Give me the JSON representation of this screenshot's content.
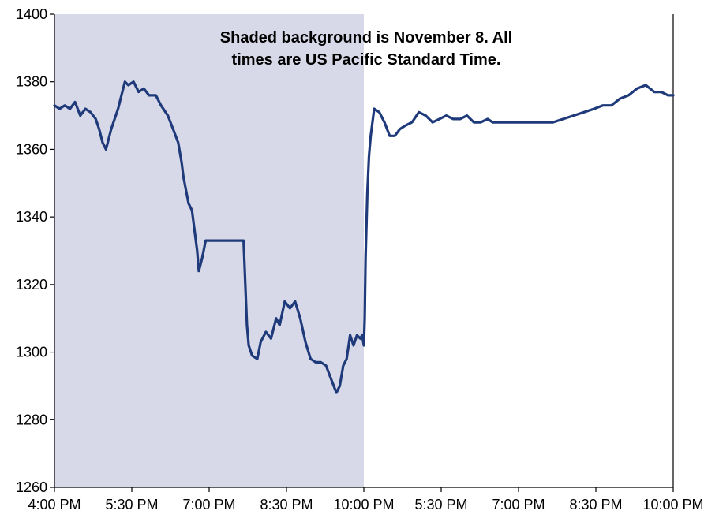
{
  "chart_data": {
    "type": "line",
    "title": "",
    "xlabel": "",
    "ylabel": "",
    "annotation": [
      "Shaded background is November 8. All",
      "times are US Pacific Standard Time."
    ],
    "ylim": [
      1260,
      1400
    ],
    "yticks": [
      1260,
      1280,
      1300,
      1320,
      1340,
      1360,
      1380,
      1400
    ],
    "xlim": [
      0,
      36
    ],
    "xticks": [
      {
        "x": 0,
        "label": "4:00 PM"
      },
      {
        "x": 4.5,
        "label": "5:30 PM"
      },
      {
        "x": 9,
        "label": "7:00 PM"
      },
      {
        "x": 13.5,
        "label": "8:30 PM"
      },
      {
        "x": 18,
        "label": "10:00 PM"
      },
      {
        "x": 22.5,
        "label": "5:30 PM"
      },
      {
        "x": 27,
        "label": "7:00 PM"
      },
      {
        "x": 31.5,
        "label": "8:30 PM"
      },
      {
        "x": 36,
        "label": "10:00 PM"
      }
    ],
    "shaded_region": {
      "x_start": 0,
      "x_end": 18,
      "color": "#d8d9e8",
      "label": "November 8"
    },
    "grid": false,
    "series": [
      {
        "name": "",
        "color": "#1f3a7a",
        "x": [
          0,
          0.3,
          0.6,
          0.9,
          1.2,
          1.5,
          1.8,
          2.1,
          2.4,
          2.6,
          2.8,
          3.0,
          3.3,
          3.7,
          3.9,
          4.1,
          4.3,
          4.6,
          4.9,
          5.2,
          5.5,
          5.9,
          6.2,
          6.6,
          6.9,
          7.2,
          7.4,
          7.5,
          7.8,
          8.0,
          8.1,
          8.3,
          8.4,
          8.6,
          8.8,
          9.0,
          9.5,
          10.0,
          10.5,
          11.0,
          11.2,
          11.3,
          11.5,
          11.8,
          12.0,
          12.3,
          12.6,
          12.9,
          13.1,
          13.4,
          13.7,
          14.0,
          14.3,
          14.6,
          14.9,
          15.2,
          15.5,
          15.8,
          16.1,
          16.4,
          16.6,
          16.8,
          17.0,
          17.2,
          17.4,
          17.6,
          17.8,
          17.9,
          18.0,
          18.05,
          18.1,
          18.2,
          18.3,
          18.4,
          18.6,
          18.9,
          19.2,
          19.5,
          19.8,
          20.1,
          20.4,
          20.8,
          21.2,
          21.6,
          22.0,
          22.4,
          22.8,
          23.2,
          23.6,
          24.0,
          24.4,
          24.8,
          25.2,
          25.5,
          26.0,
          27.0,
          28.0,
          29.0,
          29.6,
          30.2,
          30.8,
          31.4,
          31.9,
          32.4,
          32.9,
          33.4,
          33.9,
          34.4,
          34.9,
          35.3,
          35.7,
          36.0
        ],
        "y": [
          1373,
          1372,
          1373,
          1372,
          1374,
          1370,
          1372,
          1371,
          1369,
          1366,
          1362,
          1360,
          1366,
          1372,
          1376,
          1380,
          1379,
          1380,
          1377,
          1378,
          1376,
          1376,
          1373,
          1370,
          1366,
          1362,
          1356,
          1352,
          1344,
          1342,
          1338,
          1330,
          1324,
          1328,
          1333,
          1333,
          1333,
          1333,
          1333,
          1333,
          1308,
          1302,
          1299,
          1298,
          1303,
          1306,
          1304,
          1310,
          1308,
          1315,
          1313,
          1315,
          1310,
          1303,
          1298,
          1297,
          1297,
          1296,
          1292,
          1288,
          1290,
          1296,
          1298,
          1305,
          1302,
          1305,
          1304,
          1305,
          1302,
          1310,
          1328,
          1347,
          1358,
          1364,
          1372,
          1371,
          1368,
          1364,
          1364,
          1366,
          1367,
          1368,
          1371,
          1370,
          1368,
          1369,
          1370,
          1369,
          1369,
          1370,
          1368,
          1368,
          1369,
          1368,
          1368,
          1368,
          1368,
          1368,
          1369,
          1370,
          1371,
          1372,
          1373,
          1373,
          1375,
          1376,
          1378,
          1379,
          1377,
          1377,
          1376,
          1376
        ]
      }
    ]
  }
}
